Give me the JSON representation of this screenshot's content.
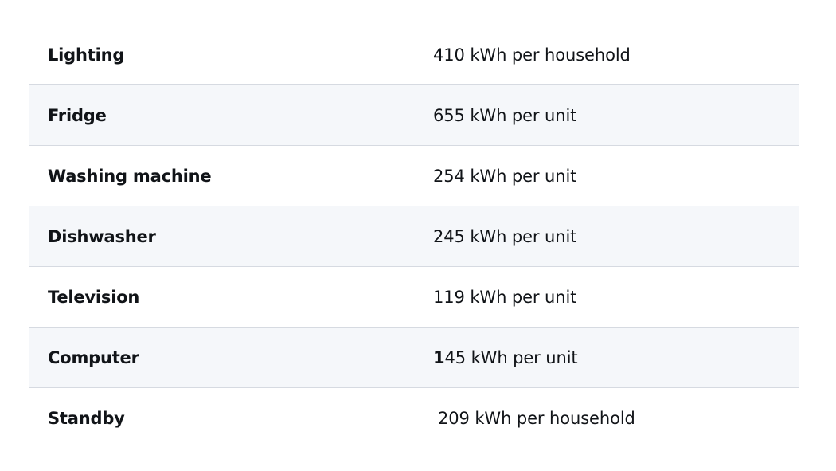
{
  "rows": [
    {
      "label": "Lighting",
      "value": "410 kWh per household"
    },
    {
      "label": "Fridge",
      "value": "655 kWh per unit"
    },
    {
      "label": "Washing machine",
      "value": "254 kWh per unit"
    },
    {
      "label": "Dishwasher",
      "value": "245 kWh per unit"
    },
    {
      "label": "Television",
      "value": "119 kWh per unit"
    },
    {
      "label": "Computer",
      "value_prefix": "1",
      "value_rest": "45 kWh per unit"
    },
    {
      "label": "Standby",
      "value": "209 kWh per household"
    }
  ],
  "colors": {
    "text": "#111418",
    "row_alt_bg": "#f5f7fa",
    "divider": "#d6dae1"
  }
}
